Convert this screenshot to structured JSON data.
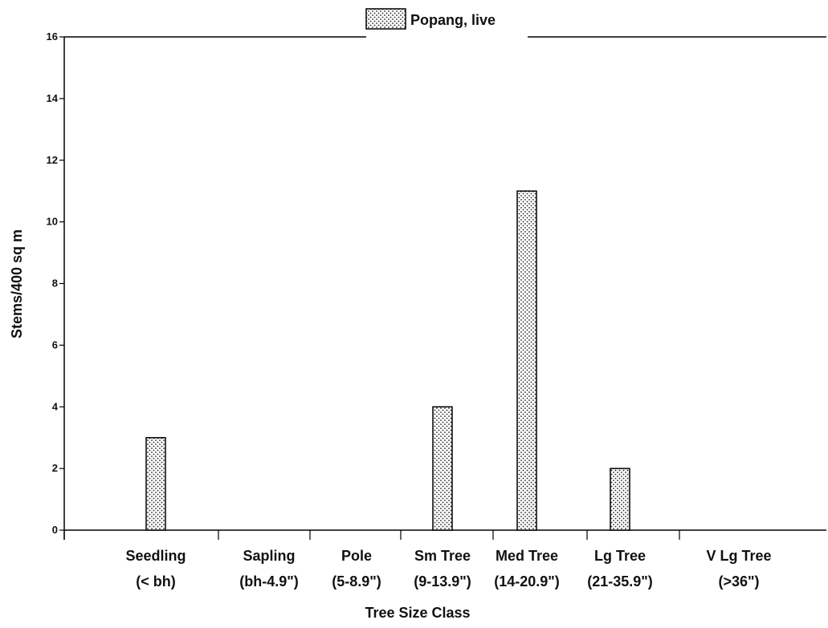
{
  "chart_data": {
    "type": "bar",
    "categories": [
      [
        "Seedling",
        "(< bh)"
      ],
      [
        "Sapling",
        "(bh-4.9\")"
      ],
      [
        "Pole",
        "(5-8.9\")"
      ],
      [
        "Sm Tree",
        "(9-13.9\")"
      ],
      [
        "Med Tree",
        "(14-20.9\")"
      ],
      [
        "Lg Tree",
        "(21-35.9\")"
      ],
      [
        "V Lg Tree",
        "(>36\")"
      ]
    ],
    "series": [
      {
        "name": "Popang, live",
        "values": [
          3,
          0,
          0,
          4,
          11,
          2,
          0
        ]
      }
    ],
    "xlabel": "Tree Size Class",
    "ylabel": "Stems/400 sq m",
    "ylim": [
      0,
      16
    ],
    "yticks": [
      0,
      2,
      4,
      6,
      8,
      10,
      12,
      14,
      16
    ],
    "legend_position": "top-center",
    "grid": false,
    "colors": {
      "bar_fill": "#ffffff",
      "bar_dots": "#222222",
      "axis": "#000000"
    }
  }
}
